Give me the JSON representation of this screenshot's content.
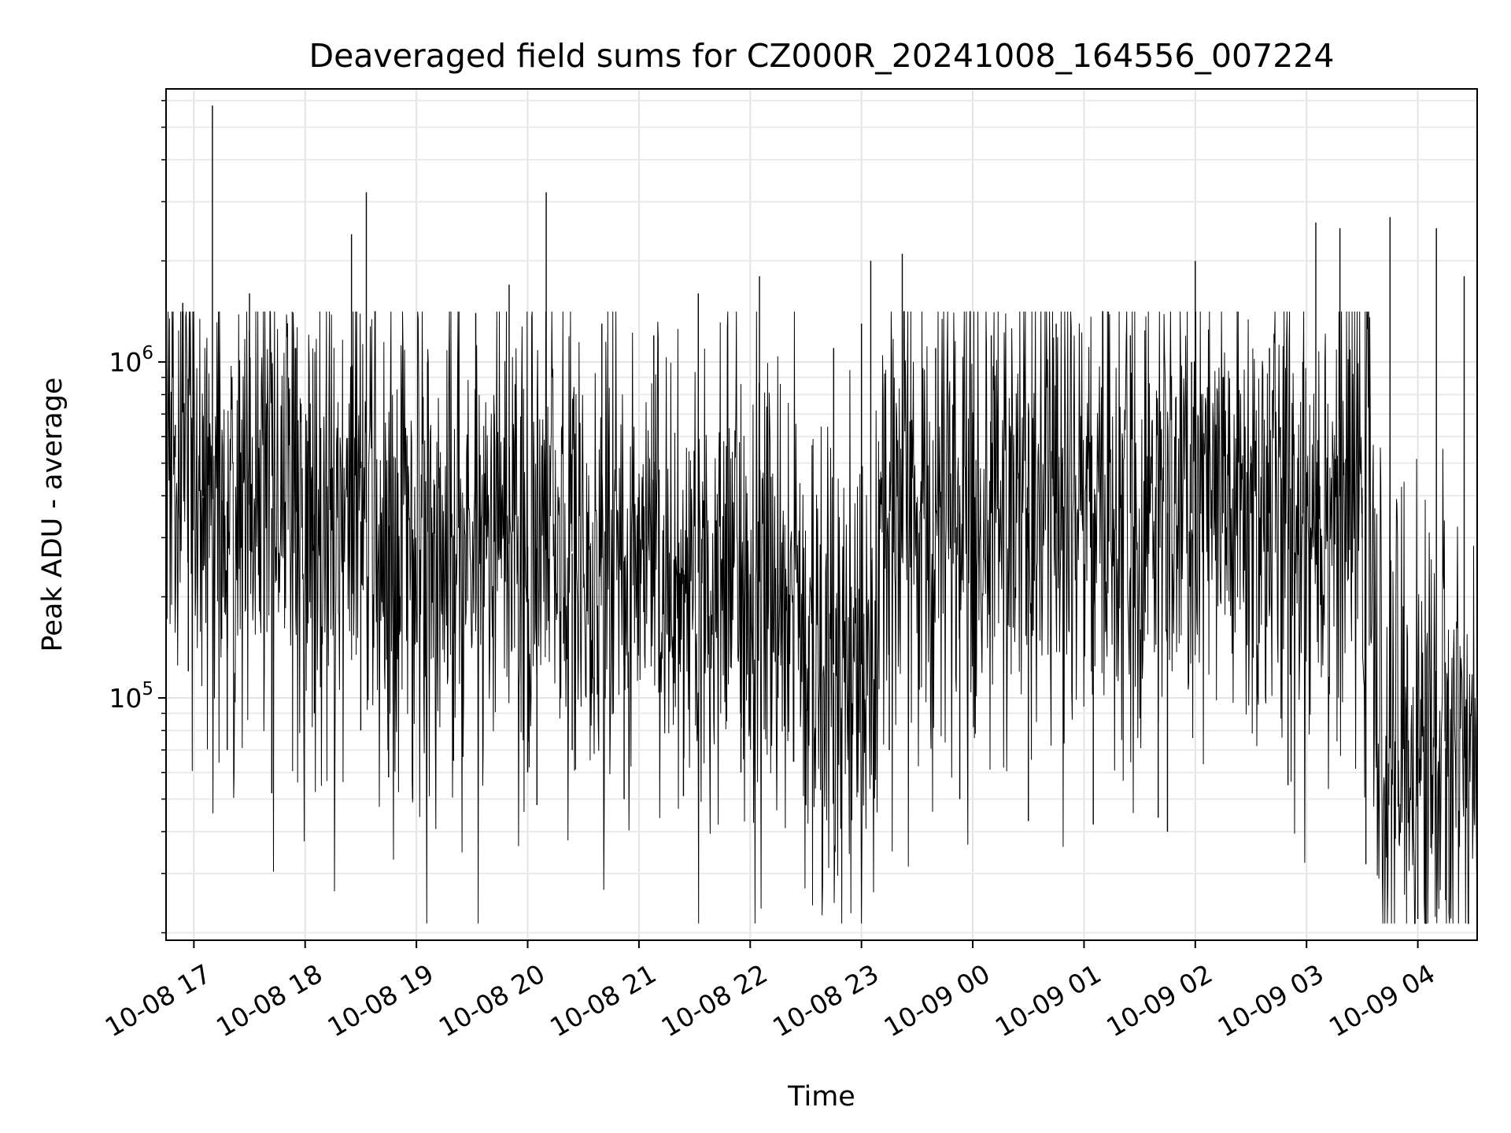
{
  "chart_data": {
    "type": "line",
    "title": "Deaveraged field sums for CZ000R_20241008_164556_007224",
    "xlabel": "Time",
    "ylabel": "Peak ADU - average",
    "y_scale": "log",
    "ylim": [
      19000,
      6500000
    ],
    "xlim": [
      "2024-10-08 16:45",
      "2024-10-09 04:32"
    ],
    "x_ticks": [
      "10-08 17",
      "10-08 18",
      "10-08 19",
      "10-08 20",
      "10-08 21",
      "10-08 22",
      "10-08 23",
      "10-09 00",
      "10-09 01",
      "10-09 02",
      "10-09 03",
      "10-09 04"
    ],
    "y_ticks": [
      {
        "base": "10",
        "exp": "5",
        "value": 100000
      },
      {
        "base": "10",
        "exp": "6",
        "value": 1000000
      }
    ],
    "grid": true,
    "line_color": "#000000",
    "series": [
      {
        "name": "",
        "points": [
          [
            "2024-10-08 16:45",
            400000
          ],
          [
            "2024-10-08 16:50",
            650000
          ],
          [
            "2024-10-08 16:54",
            1500000
          ],
          [
            "2024-10-08 16:57",
            120000
          ],
          [
            "2024-10-08 17:05",
            240000
          ],
          [
            "2024-10-08 17:10",
            5800000
          ],
          [
            "2024-10-08 17:15",
            150000
          ],
          [
            "2024-10-08 17:18",
            70000
          ],
          [
            "2024-10-08 17:30",
            1600000
          ],
          [
            "2024-10-08 17:42",
            52000
          ],
          [
            "2024-10-08 17:55",
            1100000
          ],
          [
            "2024-10-08 18:05",
            90000
          ],
          [
            "2024-10-08 18:25",
            2400000
          ],
          [
            "2024-10-08 18:30",
            80000
          ],
          [
            "2024-10-08 18:33",
            3200000
          ],
          [
            "2024-10-08 18:45",
            58000
          ],
          [
            "2024-10-08 18:58",
            50000
          ],
          [
            "2024-10-08 19:06",
            1000000
          ],
          [
            "2024-10-08 19:20",
            65000
          ],
          [
            "2024-10-08 19:32",
            1400000
          ],
          [
            "2024-10-08 19:42",
            700000
          ],
          [
            "2024-10-08 19:50",
            1700000
          ],
          [
            "2024-10-08 20:00",
            60000
          ],
          [
            "2024-10-08 20:05",
            48000
          ],
          [
            "2024-10-08 20:10",
            3200000
          ],
          [
            "2024-10-08 20:24",
            70000
          ],
          [
            "2024-10-08 20:40",
            1300000
          ],
          [
            "2024-10-08 20:52",
            50000
          ],
          [
            "2024-10-08 21:08",
            1200000
          ],
          [
            "2024-10-08 21:24",
            51000
          ],
          [
            "2024-10-08 21:32",
            1600000
          ],
          [
            "2024-10-08 21:55",
            60000
          ],
          [
            "2024-10-08 22:05",
            1800000
          ],
          [
            "2024-10-08 22:15",
            100000
          ],
          [
            "2024-10-08 22:30",
            48000
          ],
          [
            "2024-10-08 22:45",
            1100000
          ],
          [
            "2024-10-08 23:00",
            1300000
          ],
          [
            "2024-10-08 23:05",
            2000000
          ],
          [
            "2024-10-08 23:15",
            70000
          ],
          [
            "2024-10-08 23:22",
            2100000
          ],
          [
            "2024-10-08 23:40",
            1100000
          ],
          [
            "2024-10-08 23:53",
            50000
          ],
          [
            "2024-10-09 00:10",
            1200000
          ],
          [
            "2024-10-09 00:30",
            43000
          ],
          [
            "2024-10-09 00:45",
            1300000
          ],
          [
            "2024-10-09 01:05",
            42000
          ],
          [
            "2024-10-09 01:25",
            1200000
          ],
          [
            "2024-10-09 01:40",
            44000
          ],
          [
            "2024-10-09 01:45",
            40000
          ],
          [
            "2024-10-09 01:58",
            1000000
          ],
          [
            "2024-10-09 02:00",
            2000000
          ],
          [
            "2024-10-09 02:15",
            900000
          ],
          [
            "2024-10-09 02:30",
            500000
          ],
          [
            "2024-10-09 02:40",
            1100000
          ],
          [
            "2024-10-09 02:50",
            55000
          ],
          [
            "2024-10-09 02:58",
            1000000
          ],
          [
            "2024-10-09 03:05",
            2600000
          ],
          [
            "2024-10-09 03:18",
            2500000
          ],
          [
            "2024-10-09 03:30",
            300000
          ],
          [
            "2024-10-09 03:32",
            32000
          ],
          [
            "2024-10-09 03:45",
            2700000
          ],
          [
            "2024-10-09 04:00",
            22000
          ],
          [
            "2024-10-09 04:10",
            2500000
          ],
          [
            "2024-10-09 04:15",
            25000
          ],
          [
            "2024-10-09 04:25",
            1800000
          ],
          [
            "2024-10-09 04:32",
            60000
          ]
        ]
      }
    ]
  }
}
